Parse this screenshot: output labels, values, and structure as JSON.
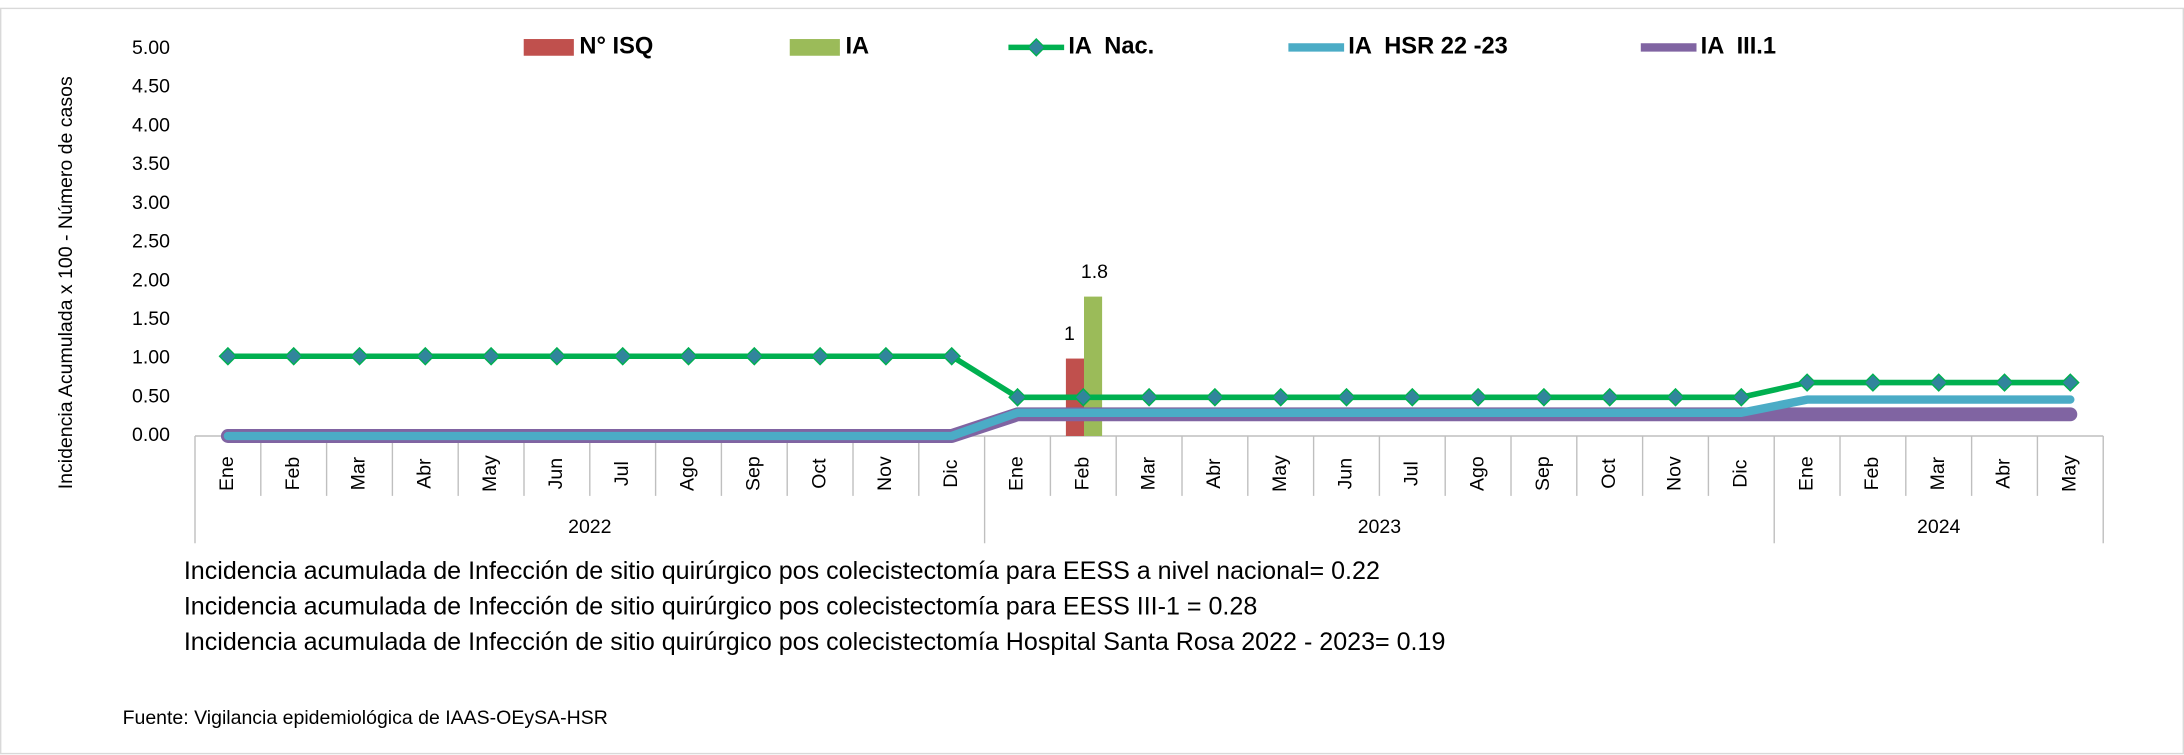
{
  "chart_data": {
    "type": "bar",
    "y_axis_label": "Incidencia Acumulada x 100 - Número de casos",
    "groups": [
      {
        "name": "2022",
        "categories": [
          "Ene",
          "Feb",
          "Mar",
          "Abr",
          "May",
          "Jun",
          "Jul",
          "Ago",
          "Sep",
          "Oct",
          "Nov",
          "Dic"
        ]
      },
      {
        "name": "2023",
        "categories": [
          "Ene",
          "Feb",
          "Mar",
          "Abr",
          "May",
          "Jun",
          "Jul",
          "Ago",
          "Sep",
          "Oct",
          "Nov",
          "Dic"
        ]
      },
      {
        "name": "2024",
        "categories": [
          "Ene",
          "Feb",
          "Mar",
          "Abr",
          "May"
        ]
      }
    ],
    "ylim": [
      0,
      5
    ],
    "yticks": [
      {
        "value": 0,
        "label": "0.00"
      },
      {
        "value": 0.5,
        "label": "0.50"
      },
      {
        "value": 1,
        "label": "1.00"
      },
      {
        "value": 1.5,
        "label": "1.50"
      },
      {
        "value": 2,
        "label": "2.00"
      },
      {
        "value": 2.5,
        "label": "2.50"
      },
      {
        "value": 3,
        "label": "3.00"
      },
      {
        "value": 3.5,
        "label": "3.50"
      },
      {
        "value": 4,
        "label": "4.00"
      },
      {
        "value": 4.5,
        "label": "4.50"
      },
      {
        "value": 5,
        "label": "5.00"
      }
    ],
    "series": [
      {
        "name": "N° ISQ",
        "type": "bar",
        "color": "#c0504d",
        "values": [
          null,
          null,
          null,
          null,
          null,
          null,
          null,
          null,
          null,
          null,
          null,
          null,
          null,
          1,
          null,
          null,
          null,
          null,
          null,
          null,
          null,
          null,
          null,
          null,
          null,
          null,
          null,
          null,
          null
        ]
      },
      {
        "name": "IA",
        "type": "bar",
        "color": "#9bbb59",
        "values": [
          null,
          null,
          null,
          null,
          null,
          null,
          null,
          null,
          null,
          null,
          null,
          null,
          null,
          1.8,
          null,
          null,
          null,
          null,
          null,
          null,
          null,
          null,
          null,
          null,
          null,
          null,
          null,
          null,
          null
        ]
      },
      {
        "name": "IA  III.1",
        "type": "line",
        "color": "#8064a2",
        "width": 10,
        "values": [
          0,
          0,
          0,
          0,
          0,
          0,
          0,
          0,
          0,
          0,
          0,
          0,
          0.28,
          0.28,
          0.28,
          0.28,
          0.28,
          0.28,
          0.28,
          0.28,
          0.28,
          0.28,
          0.28,
          0.28,
          0.28,
          0.28,
          0.28,
          0.28,
          0.28
        ]
      },
      {
        "name": "IA  HSR 22 -23",
        "type": "line",
        "color": "#4bacc6",
        "width": 6,
        "values": [
          0,
          0,
          0,
          0,
          0,
          0,
          0,
          0,
          0,
          0,
          0,
          0,
          0.3,
          0.3,
          0.3,
          0.3,
          0.3,
          0.3,
          0.3,
          0.3,
          0.3,
          0.3,
          0.3,
          0.3,
          0.47,
          0.47,
          0.47,
          0.47,
          0.47
        ]
      },
      {
        "name": "IA  Nac.",
        "type": "line",
        "color": "#00b050",
        "width": 4,
        "marker": "diamond",
        "marker_color": "#31859c",
        "values": [
          1.03,
          1.03,
          1.03,
          1.03,
          1.03,
          1.03,
          1.03,
          1.03,
          1.03,
          1.03,
          1.03,
          1.03,
          0.5,
          0.5,
          0.5,
          0.5,
          0.5,
          0.5,
          0.5,
          0.5,
          0.5,
          0.5,
          0.5,
          0.5,
          0.69,
          0.69,
          0.69,
          0.69,
          0.69
        ]
      }
    ],
    "legend_order": [
      0,
      1,
      4,
      3,
      2
    ],
    "notes": [
      "Incidencia acumulada de Infección de sitio quirúrgico pos colecistectomía para EESS a nivel nacional= 0.22",
      "Incidencia acumulada de Infección de sitio quirúrgico pos colecistectomía para EESS III-1 = 0.28",
      "Incidencia acumulada de Infección de sitio quirúrgico pos colecistectomía Hospital Santa Rosa 2022 - 2023= 0.19"
    ],
    "source": "Fuente: Vigilancia epidemiológica de IAAS-OEySA-HSR"
  }
}
